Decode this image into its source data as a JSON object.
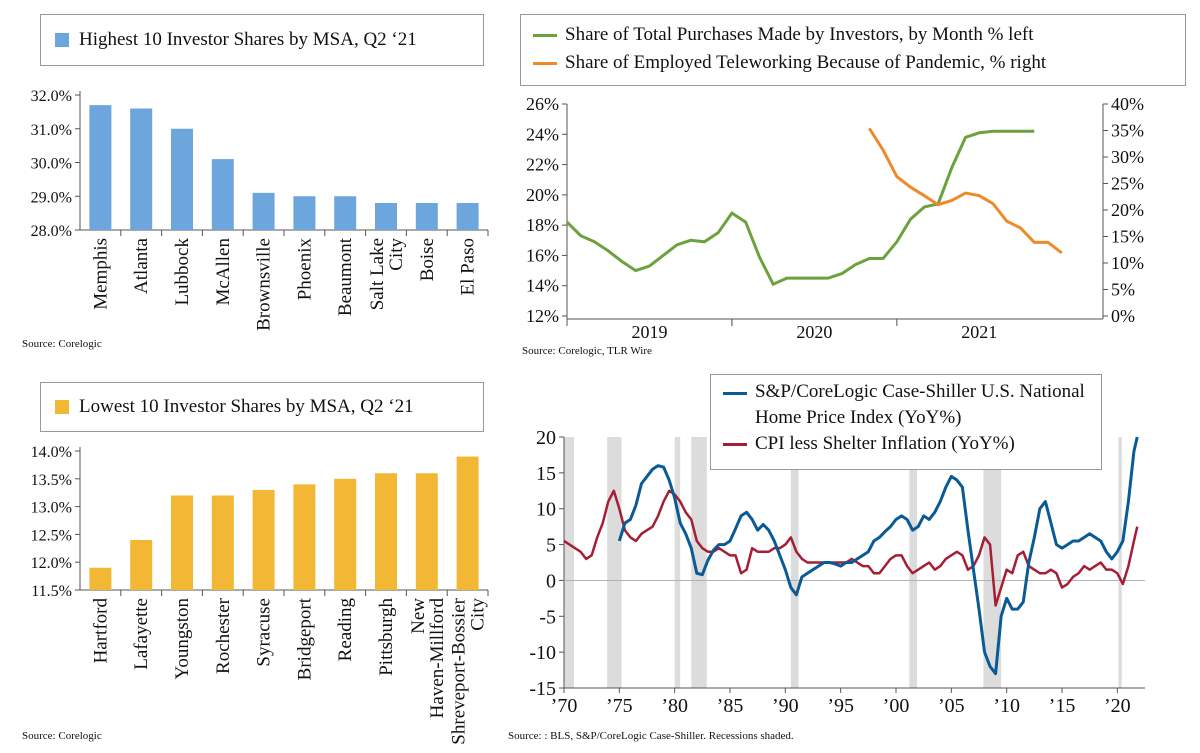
{
  "colors": {
    "blue_bar": "#6CA6DD",
    "gold_bar": "#F3B736",
    "green": "#6BA23D",
    "orange": "#EE8A2A",
    "navy": "#0A5A96",
    "red": "#A61E34",
    "recession": "#DCDCDC"
  },
  "sources": {
    "top_left": "Source:  Corelogic",
    "top_right": "Source:  Corelogic, TLR Wire",
    "bottom_left": "Source:  Corelogic",
    "bottom_right": "Source:  : BLS, S&P/CoreLogic Case-Shiller. Recessions shaded."
  },
  "chart_data": [
    {
      "type": "bar",
      "title": "Highest 10 Investor Shares by MSA, Q2 ‘21",
      "categories": [
        "Memphis",
        "Atlanta",
        "Lubbock",
        "McAllen",
        "Brownsville",
        "Phoenix",
        "Beaumont",
        "Salt Lake City",
        "Boise",
        "El Paso"
      ],
      "values": [
        31.7,
        31.6,
        31.0,
        30.1,
        29.1,
        29.0,
        29.0,
        28.8,
        28.8,
        28.8
      ],
      "ylim": [
        28.0,
        32.0
      ],
      "yticks": [
        "28.0%",
        "29.0%",
        "30.0%",
        "31.0%",
        "32.0%"
      ],
      "legend": "top-left"
    },
    {
      "type": "line",
      "xticks": [
        "2019",
        "2020",
        "2021"
      ],
      "left_axis": {
        "ylim": [
          12,
          26
        ],
        "ticks": [
          "12%",
          "14%",
          "16%",
          "18%",
          "20%",
          "22%",
          "24%",
          "26%"
        ]
      },
      "right_axis": {
        "ylim": [
          0,
          40
        ],
        "ticks": [
          "0%",
          "5%",
          "10%",
          "15%",
          "20%",
          "25%",
          "30%",
          "35%",
          "40%"
        ]
      },
      "series": [
        {
          "name": "Share of Total Purchases Made by Investors, by Month % left",
          "axis": "left",
          "x": [
            "2018-07",
            "2018-08",
            "2018-09",
            "2018-10",
            "2018-11",
            "2018-12",
            "2019-01",
            "2019-02",
            "2019-03",
            "2019-04",
            "2019-05",
            "2019-06",
            "2019-07",
            "2019-08",
            "2019-09",
            "2019-10",
            "2019-11",
            "2019-12",
            "2020-01",
            "2020-02",
            "2020-03",
            "2020-04",
            "2020-05",
            "2020-06",
            "2020-07",
            "2020-08",
            "2020-09",
            "2020-10",
            "2020-11",
            "2020-12",
            "2021-01",
            "2021-02",
            "2021-03",
            "2021-04",
            "2021-05"
          ],
          "values": [
            18.2,
            17.3,
            16.9,
            16.3,
            15.6,
            15.0,
            15.3,
            16.0,
            16.7,
            17.0,
            16.9,
            17.5,
            18.8,
            18.2,
            15.9,
            14.1,
            14.5,
            14.5,
            14.5,
            14.5,
            14.8,
            15.4,
            15.8,
            15.8,
            16.9,
            18.4,
            19.2,
            19.4,
            21.8,
            23.8,
            24.1,
            24.2,
            24.2,
            24.2,
            24.2
          ]
        },
        {
          "name": "Share of Employed Teleworking Because of Pandemic, % right",
          "axis": "right",
          "x": [
            "2020-05",
            "2020-06",
            "2020-07",
            "2020-08",
            "2020-09",
            "2020-10",
            "2020-11",
            "2020-12",
            "2021-01",
            "2021-02",
            "2021-03",
            "2021-04",
            "2021-05",
            "2021-06",
            "2021-07"
          ],
          "values": [
            35.4,
            31.3,
            26.3,
            24.3,
            22.7,
            21.0,
            21.8,
            23.2,
            22.7,
            21.2,
            17.9,
            16.6,
            13.9,
            13.9,
            11.9
          ]
        }
      ],
      "legend": "top"
    },
    {
      "type": "bar",
      "title": "Lowest 10 Investor Shares by MSA, Q2 ‘21",
      "categories": [
        "Hartford",
        "Lafayette",
        "Youngston",
        "Rochester",
        "Syracuse",
        "Bridgeport",
        "Reading",
        "Pittsburgh",
        "New Haven-Millford",
        "Shreveport-Bossier City"
      ],
      "values": [
        11.9,
        12.4,
        13.2,
        13.2,
        13.3,
        13.4,
        13.5,
        13.6,
        13.6,
        13.9
      ],
      "ylim": [
        11.5,
        14.0
      ],
      "yticks": [
        "11.5%",
        "12.0%",
        "12.5%",
        "13.0%",
        "13.5%",
        "14.0%"
      ],
      "legend": "top-left"
    },
    {
      "type": "line",
      "xticks": [
        "’70",
        "’75",
        "’80",
        "’85",
        "’90",
        "’95",
        "’00",
        "’05",
        "’10",
        "’15",
        "’20"
      ],
      "ylim": [
        -15,
        20
      ],
      "yticks": [
        "-15",
        "-10",
        "-5",
        "0",
        "5",
        "10",
        "15",
        "20"
      ],
      "recessions": [
        [
          1970.0,
          1970.9
        ],
        [
          1973.9,
          1975.2
        ],
        [
          1980.0,
          1980.5
        ],
        [
          1981.5,
          1982.9
        ],
        [
          1990.5,
          1991.2
        ],
        [
          2001.2,
          2001.9
        ],
        [
          2007.9,
          2009.5
        ],
        [
          2020.1,
          2020.4
        ]
      ],
      "series": [
        {
          "name": "S&P/CoreLogic Case-Shiller U.S. National Home Price Index (YoY%)",
          "x": [
            1975.0,
            1975.5,
            1976.0,
            1976.5,
            1977.0,
            1977.5,
            1978.0,
            1978.5,
            1979.0,
            1979.5,
            1980.0,
            1980.5,
            1981.0,
            1981.5,
            1982.0,
            1982.5,
            1983.0,
            1983.5,
            1984.0,
            1984.5,
            1985.0,
            1985.5,
            1986.0,
            1986.5,
            1987.0,
            1987.5,
            1988.0,
            1988.5,
            1989.0,
            1989.5,
            1990.0,
            1990.5,
            1991.0,
            1991.5,
            1992.0,
            1992.5,
            1993.0,
            1993.5,
            1994.0,
            1994.5,
            1995.0,
            1995.5,
            1996.0,
            1996.5,
            1997.0,
            1997.5,
            1998.0,
            1998.5,
            1999.0,
            1999.5,
            2000.0,
            2000.5,
            2001.0,
            2001.5,
            2002.0,
            2002.5,
            2003.0,
            2003.5,
            2004.0,
            2004.5,
            2005.0,
            2005.5,
            2006.0,
            2006.5,
            2007.0,
            2007.5,
            2008.0,
            2008.5,
            2009.0,
            2009.5,
            2010.0,
            2010.5,
            2011.0,
            2011.5,
            2012.0,
            2012.5,
            2013.0,
            2013.5,
            2014.0,
            2014.5,
            2015.0,
            2015.5,
            2016.0,
            2016.5,
            2017.0,
            2017.5,
            2018.0,
            2018.5,
            2019.0,
            2019.5,
            2020.0,
            2020.5,
            2021.0,
            2021.5,
            2021.8
          ],
          "values": [
            5.5,
            8.0,
            8.5,
            10.5,
            13.5,
            14.5,
            15.5,
            16.0,
            15.8,
            14.0,
            11.5,
            8.0,
            6.5,
            4.5,
            1.0,
            0.8,
            2.8,
            4.2,
            5.0,
            5.0,
            5.5,
            7.2,
            9.0,
            9.5,
            8.5,
            7.0,
            7.8,
            7.0,
            5.5,
            3.5,
            1.5,
            -1.0,
            -2.0,
            0.5,
            1.0,
            1.5,
            2.0,
            2.5,
            2.5,
            2.3,
            2.0,
            2.5,
            2.5,
            3.0,
            3.5,
            4.0,
            5.5,
            6.0,
            6.8,
            7.5,
            8.5,
            9.0,
            8.5,
            7.0,
            7.5,
            9.0,
            8.5,
            9.5,
            11.0,
            13.0,
            14.5,
            14.0,
            13.0,
            7.0,
            1.5,
            -4.0,
            -10.0,
            -12.0,
            -13.0,
            -5.0,
            -2.5,
            -4.0,
            -4.0,
            -3.0,
            2.5,
            6.0,
            10.0,
            11.0,
            8.0,
            5.0,
            4.5,
            5.0,
            5.5,
            5.5,
            6.0,
            6.5,
            6.0,
            5.5,
            4.0,
            3.0,
            4.0,
            5.5,
            11.0,
            18.0,
            20.0
          ]
        },
        {
          "name": "CPI less Shelter Inflation (YoY%)",
          "x": [
            1970.0,
            1970.5,
            1971.0,
            1971.5,
            1972.0,
            1972.5,
            1973.0,
            1973.5,
            1974.0,
            1974.5,
            1975.0,
            1975.5,
            1976.0,
            1976.5,
            1977.0,
            1977.5,
            1978.0,
            1978.5,
            1979.0,
            1979.5,
            1980.0,
            1980.5,
            1981.0,
            1981.5,
            1982.0,
            1982.5,
            1983.0,
            1983.5,
            1984.0,
            1984.5,
            1985.0,
            1985.5,
            1986.0,
            1986.5,
            1987.0,
            1987.5,
            1988.0,
            1988.5,
            1989.0,
            1989.5,
            1990.0,
            1990.5,
            1991.0,
            1991.5,
            1992.0,
            1992.5,
            1993.0,
            1993.5,
            1994.0,
            1994.5,
            1995.0,
            1995.5,
            1996.0,
            1996.5,
            1997.0,
            1997.5,
            1998.0,
            1998.5,
            1999.0,
            1999.5,
            2000.0,
            2000.5,
            2001.0,
            2001.5,
            2002.0,
            2002.5,
            2003.0,
            2003.5,
            2004.0,
            2004.5,
            2005.0,
            2005.5,
            2006.0,
            2006.5,
            2007.0,
            2007.5,
            2008.0,
            2008.5,
            2009.0,
            2009.5,
            2010.0,
            2010.5,
            2011.0,
            2011.5,
            2012.0,
            2012.5,
            2013.0,
            2013.5,
            2014.0,
            2014.5,
            2015.0,
            2015.5,
            2016.0,
            2016.5,
            2017.0,
            2017.5,
            2018.0,
            2018.5,
            2019.0,
            2019.5,
            2020.0,
            2020.5,
            2021.0,
            2021.5,
            2021.8
          ],
          "values": [
            5.5,
            5.0,
            4.5,
            4.0,
            3.0,
            3.5,
            6.0,
            8.0,
            11.0,
            12.5,
            10.0,
            7.0,
            6.0,
            5.5,
            6.5,
            7.0,
            7.5,
            9.0,
            11.0,
            12.5,
            12.0,
            11.0,
            9.5,
            8.5,
            5.5,
            4.5,
            4.0,
            4.0,
            4.5,
            4.0,
            3.5,
            3.5,
            1.0,
            1.5,
            4.5,
            4.0,
            4.0,
            4.0,
            4.5,
            4.5,
            5.0,
            6.0,
            4.0,
            3.0,
            2.5,
            2.5,
            2.5,
            2.5,
            2.5,
            2.5,
            2.5,
            2.5,
            3.0,
            2.5,
            2.0,
            2.0,
            1.0,
            1.0,
            2.0,
            3.0,
            3.5,
            3.5,
            2.0,
            1.0,
            1.5,
            2.0,
            2.5,
            1.5,
            2.0,
            3.0,
            3.5,
            4.0,
            3.5,
            1.5,
            2.0,
            3.5,
            6.0,
            5.0,
            -3.5,
            -1.0,
            1.5,
            1.0,
            3.5,
            4.0,
            2.0,
            1.5,
            1.0,
            1.0,
            1.5,
            1.0,
            -1.0,
            -0.5,
            0.5,
            1.0,
            2.0,
            1.5,
            2.0,
            2.5,
            1.5,
            1.5,
            1.0,
            -0.5,
            2.0,
            5.5,
            7.5
          ]
        }
      ],
      "legend": "top-right"
    }
  ]
}
